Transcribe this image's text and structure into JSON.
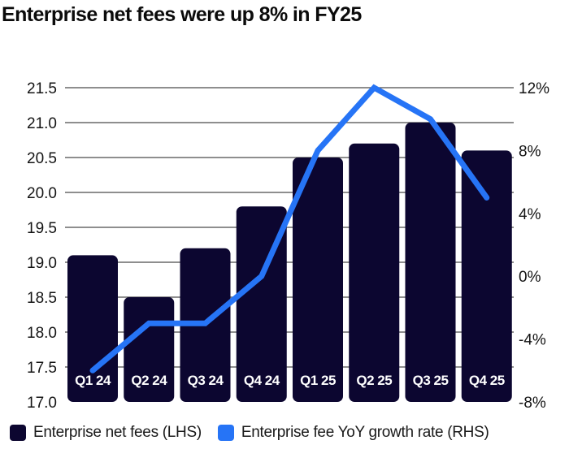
{
  "chart_data": {
    "type": "bar",
    "title": "Enterprise net fees were up 8% in FY25",
    "categories": [
      "Q1 24",
      "Q2 24",
      "Q3 24",
      "Q4 24",
      "Q1 25",
      "Q2 25",
      "Q3 25",
      "Q4 25"
    ],
    "series": [
      {
        "name": "Enterprise net fees (LHS)",
        "type": "bar",
        "axis": "left",
        "color": "#0c0630",
        "values": [
          19.1,
          18.5,
          19.2,
          19.8,
          20.5,
          20.7,
          21.0,
          20.6
        ]
      },
      {
        "name": "Enterprise fee YoY growth rate (RHS)",
        "type": "line",
        "axis": "right",
        "color": "#2674f6",
        "values": [
          -6.0,
          -3.0,
          -3.0,
          0.0,
          8.0,
          12.0,
          10.0,
          5.0
        ]
      }
    ],
    "left_axis": {
      "ylim": [
        17.0,
        21.5
      ],
      "ticks": [
        17.0,
        17.5,
        18.0,
        18.5,
        19.0,
        19.5,
        20.0,
        20.5,
        21.0,
        21.5
      ],
      "tick_labels": [
        "17.0",
        "17.5",
        "18.0",
        "18.5",
        "19.0",
        "19.5",
        "20.0",
        "20.5",
        "21.0",
        "21.5"
      ]
    },
    "right_axis": {
      "ylim": [
        -8,
        12
      ],
      "ticks": [
        -8,
        -4,
        0,
        4,
        8,
        12
      ],
      "tick_labels": [
        "-8%",
        "-4%",
        "0%",
        "4%",
        "8%",
        "12%"
      ]
    },
    "xlabel": "",
    "ylabel": "",
    "grid": true,
    "legend_position": "bottom-left"
  },
  "legend": {
    "items": [
      {
        "label": "Enterprise net fees (LHS)",
        "color": "#0c0630"
      },
      {
        "label": "Enterprise fee YoY growth rate (RHS)",
        "color": "#2674f6"
      }
    ]
  }
}
